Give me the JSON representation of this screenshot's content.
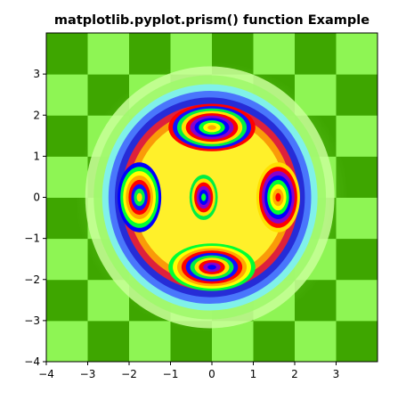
{
  "chart_data": {
    "type": "heatmap",
    "title": "matplotlib.pyplot.prism() function Example",
    "colormap": "prism",
    "xlim": [
      -4,
      4
    ],
    "ylim": [
      -4,
      4
    ],
    "xticks": [
      -4,
      -3,
      -2,
      -1,
      0,
      1,
      2,
      3
    ],
    "yticks": [
      -4,
      -3,
      -2,
      -1,
      0,
      1,
      2,
      3
    ],
    "xtick_labels": [
      "−4",
      "−3",
      "−2",
      "−1",
      "0",
      "1",
      "2",
      "3"
    ],
    "ytick_labels": [
      "−4",
      "−3",
      "−2",
      "−1",
      "0",
      "1",
      "2",
      "3"
    ],
    "checkerboard": {
      "cell_size": 1,
      "color_dark": "#3ea600",
      "color_light": "#8ef554"
    },
    "blobs": [
      {
        "label": "top",
        "x": 0,
        "y": 1.7,
        "rings": 10
      },
      {
        "label": "bottom",
        "x": 0,
        "y": -1.7,
        "rings": 10
      },
      {
        "label": "left",
        "x": -1.75,
        "y": 0,
        "rings": 8
      },
      {
        "label": "right",
        "x": 1.6,
        "y": 0,
        "rings": 8
      },
      {
        "label": "center",
        "x": -0.2,
        "y": 0,
        "rings": 6
      }
    ],
    "grid": false
  }
}
